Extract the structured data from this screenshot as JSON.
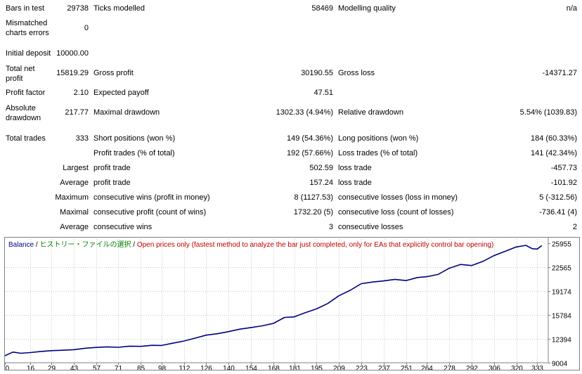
{
  "report": {
    "bars_label": "Bars in test",
    "bars_value": "29738",
    "ticks_label": "Ticks modelled",
    "ticks_value": "58469",
    "quality_label": "Modelling quality",
    "quality_value": "n/a",
    "mismatch_label_1": "Mismatched",
    "mismatch_label_2": "charts errors",
    "mismatch_value": "0",
    "deposit_label": "Initial deposit",
    "deposit_value": "10000.00",
    "netprofit_label_1": "Total net",
    "netprofit_label_2": "profit",
    "netprofit_value": "15819.29",
    "grossprofit_label": "Gross profit",
    "grossprofit_value": "30190.55",
    "grossloss_label": "Gross loss",
    "grossloss_value": "-14371.27",
    "pf_label": "Profit factor",
    "pf_value": "2.10",
    "payoff_label": "Expected payoff",
    "payoff_value": "47.51",
    "absdd_label_1": "Absolute",
    "absdd_label_2": "drawdown",
    "absdd_value": "217.77",
    "maxdd_label": "Maximal drawdown",
    "maxdd_value": "1302.33 (4.94%)",
    "reldd_label": "Relative drawdown",
    "reldd_value": "5.54% (1039.83)",
    "trades_label": "Total trades",
    "trades_value": "333",
    "short_label": "Short positions (won %)",
    "short_value": "149 (54.36%)",
    "long_label": "Long positions (won %)",
    "long_value": "184 (60.33%)",
    "ptrades_label": "Profit trades (% of total)",
    "ptrades_value": "192 (57.66%)",
    "ltrades_label": "Loss trades (% of total)",
    "ltrades_value": "141 (42.34%)",
    "largest_label": "Largest",
    "largest_profit_label": "profit trade",
    "largest_profit_value": "502.59",
    "largest_loss_label": "loss trade",
    "largest_loss_value": "-457.73",
    "average_label": "Average",
    "average_profit_label": "profit trade",
    "average_profit_value": "157.24",
    "average_loss_label": "loss trade",
    "average_loss_value": "-101.92",
    "maximum_label": "Maximum",
    "max_wins_label": "consecutive wins (profit in money)",
    "max_wins_value": "8 (1127.53)",
    "max_losses_label": "consecutive losses (loss in money)",
    "max_losses_value": "5 (-312.56)",
    "maximal_label": "Maximal",
    "maximal_profit_label": "consecutive profit (count of wins)",
    "maximal_profit_value": "1732.20 (5)",
    "maximal_loss_label": "consecutive loss (count of losses)",
    "maximal_loss_value": "-736.41 (4)",
    "avg2_label": "Average",
    "avg_wins_label": "consecutive wins",
    "avg_wins_value": "3",
    "avg_losses_label": "consecutive losses",
    "avg_losses_value": "2"
  },
  "chart_data": {
    "type": "line",
    "legend": {
      "balance": "Balance",
      "sep1": " / ",
      "history": "ヒストリー・ファイルの選択",
      "sep2": " / ",
      "mode": "Open prices only (fastest method to analyze the bar just completed, only for EAs that explicitly control bar opening)"
    },
    "colors": {
      "line": "#00007f",
      "balance_text": "#00007f",
      "history_text": "#008000",
      "mode_text": "#c00000",
      "grid": "#c8c8c8"
    },
    "x_ticks": [
      0,
      16,
      29,
      43,
      57,
      71,
      85,
      98,
      112,
      126,
      140,
      154,
      168,
      181,
      195,
      209,
      223,
      237,
      251,
      264,
      278,
      292,
      306,
      320,
      333
    ],
    "y_ticks": [
      "25955",
      "22565",
      "19174",
      "15784",
      "12394",
      "9004"
    ],
    "y_tick_values": [
      25955,
      22565,
      19174,
      15784,
      12394,
      9004
    ],
    "xlim": [
      0,
      340
    ],
    "ylim": [
      9004,
      26580
    ],
    "x": [
      0,
      5,
      10,
      16,
      22,
      29,
      36,
      43,
      50,
      57,
      64,
      71,
      78,
      85,
      92,
      98,
      105,
      112,
      119,
      126,
      133,
      140,
      147,
      154,
      161,
      168,
      175,
      181,
      188,
      195,
      202,
      209,
      216,
      223,
      230,
      237,
      244,
      251,
      258,
      264,
      271,
      278,
      285,
      292,
      299,
      306,
      313,
      320,
      326,
      330,
      333,
      336
    ],
    "y": [
      10000,
      10520,
      10350,
      10450,
      10590,
      10720,
      10780,
      10860,
      11060,
      11180,
      11260,
      11200,
      11360,
      11330,
      11480,
      11460,
      11780,
      12090,
      12500,
      12930,
      13130,
      13430,
      13780,
      14010,
      14250,
      14600,
      15450,
      15520,
      16120,
      16650,
      17420,
      18520,
      19290,
      20240,
      20470,
      20630,
      20850,
      20680,
      21110,
      21230,
      21550,
      22430,
      22960,
      22820,
      23390,
      24220,
      24830,
      25450,
      25680,
      25200,
      25150,
      25640
    ]
  }
}
